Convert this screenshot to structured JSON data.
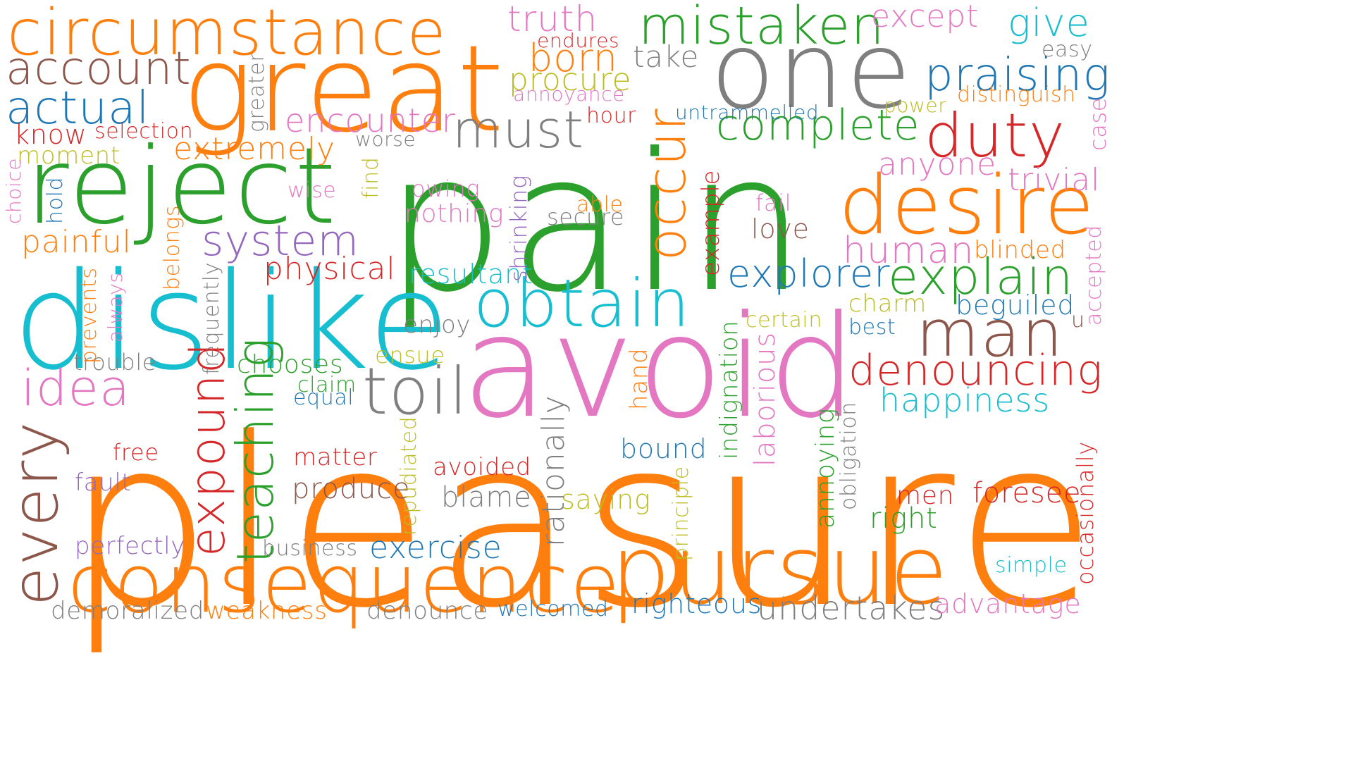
{
  "colors": {
    "orange": "#ff7f0e",
    "green": "#2ca02c",
    "cyan": "#17becf",
    "pink": "#e377c2",
    "gray": "#7f7f7f",
    "brown": "#8c564b",
    "blue": "#1f77b4",
    "red": "#d62728",
    "purple": "#9467bd",
    "olive": "#bcbd22"
  },
  "words": [
    {
      "text": "pleasure",
      "color": "orange"
    },
    {
      "text": "pain",
      "color": "green"
    },
    {
      "text": "avoid",
      "color": "pink"
    },
    {
      "text": "dislike",
      "color": "cyan"
    },
    {
      "text": "great",
      "color": "orange"
    },
    {
      "text": "one",
      "color": "gray"
    },
    {
      "text": "reject",
      "color": "green"
    },
    {
      "text": "pursue",
      "color": "orange"
    },
    {
      "text": "consequence",
      "color": "orange"
    },
    {
      "text": "desire",
      "color": "orange"
    },
    {
      "text": "circumstance",
      "color": "orange"
    },
    {
      "text": "obtain",
      "color": "cyan"
    },
    {
      "text": "man",
      "color": "brown"
    },
    {
      "text": "mistaken",
      "color": "green"
    },
    {
      "text": "toil",
      "color": "gray"
    },
    {
      "text": "praising",
      "color": "blue"
    },
    {
      "text": "duty",
      "color": "red"
    },
    {
      "text": "must",
      "color": "gray"
    },
    {
      "text": "complete",
      "color": "green"
    },
    {
      "text": "denouncing",
      "color": "red"
    },
    {
      "text": "explain",
      "color": "green"
    },
    {
      "text": "idea",
      "color": "pink"
    },
    {
      "text": "account",
      "color": "brown"
    },
    {
      "text": "actual",
      "color": "blue"
    },
    {
      "text": "system",
      "color": "purple"
    },
    {
      "text": "explorer",
      "color": "blue"
    },
    {
      "text": "human",
      "color": "pink"
    },
    {
      "text": "every",
      "color": "brown"
    },
    {
      "text": "occur",
      "color": "orange"
    },
    {
      "text": "teaching",
      "color": "green"
    },
    {
      "text": "expound",
      "color": "red"
    },
    {
      "text": "happiness",
      "color": "cyan"
    },
    {
      "text": "undertakes",
      "color": "gray"
    },
    {
      "text": "encounter",
      "color": "pink"
    },
    {
      "text": "give",
      "color": "cyan"
    },
    {
      "text": "painful",
      "color": "orange"
    },
    {
      "text": "physical",
      "color": "red"
    },
    {
      "text": "exercise",
      "color": "blue"
    },
    {
      "text": "advantage",
      "color": "pink"
    },
    {
      "text": "extremely",
      "color": "orange"
    },
    {
      "text": "truth",
      "color": "pink"
    },
    {
      "text": "born",
      "color": "orange"
    },
    {
      "text": "procure",
      "color": "olive"
    },
    {
      "text": "except",
      "color": "pink"
    },
    {
      "text": "anyone",
      "color": "pink"
    },
    {
      "text": "trivial",
      "color": "pink"
    },
    {
      "text": "righteous",
      "color": "blue"
    },
    {
      "text": "demoralized",
      "color": "gray"
    },
    {
      "text": "weakness",
      "color": "orange"
    },
    {
      "text": "denounce",
      "color": "gray"
    },
    {
      "text": "resultant",
      "color": "cyan"
    },
    {
      "text": "foresee",
      "color": "red"
    },
    {
      "text": "chooses",
      "color": "green"
    },
    {
      "text": "produce",
      "color": "brown"
    },
    {
      "text": "blame",
      "color": "gray"
    },
    {
      "text": "take",
      "color": "gray"
    },
    {
      "text": "enjoy",
      "color": "gray"
    },
    {
      "text": "trouble",
      "color": "gray"
    },
    {
      "text": "matter",
      "color": "red"
    },
    {
      "text": "avoided",
      "color": "red"
    },
    {
      "text": "bound",
      "color": "blue"
    },
    {
      "text": "love",
      "color": "brown"
    },
    {
      "text": "secure",
      "color": "gray"
    },
    {
      "text": "nothing",
      "color": "pink"
    },
    {
      "text": "owing",
      "color": "pink"
    },
    {
      "text": "know",
      "color": "red"
    },
    {
      "text": "saying",
      "color": "olive"
    },
    {
      "text": "beguiled",
      "color": "blue"
    },
    {
      "text": "charm",
      "color": "olive"
    },
    {
      "text": "blinded",
      "color": "orange"
    },
    {
      "text": "men",
      "color": "red"
    },
    {
      "text": "right",
      "color": "green"
    },
    {
      "text": "fault",
      "color": "purple"
    },
    {
      "text": "free",
      "color": "red"
    },
    {
      "text": "perfectly",
      "color": "purple"
    },
    {
      "text": "business",
      "color": "gray"
    },
    {
      "text": "welcomed",
      "color": "blue"
    },
    {
      "text": "simple",
      "color": "cyan"
    },
    {
      "text": "easy",
      "color": "gray"
    },
    {
      "text": "distinguish",
      "color": "orange"
    },
    {
      "text": "power",
      "color": "olive"
    },
    {
      "text": "untrammelled",
      "color": "blue"
    },
    {
      "text": "hour",
      "color": "red"
    },
    {
      "text": "annoyance",
      "color": "pink"
    },
    {
      "text": "endures",
      "color": "red"
    },
    {
      "text": "moment",
      "color": "olive"
    },
    {
      "text": "selection",
      "color": "red"
    },
    {
      "text": "worse",
      "color": "gray"
    },
    {
      "text": "wise",
      "color": "pink"
    },
    {
      "text": "able",
      "color": "orange"
    },
    {
      "text": "fail",
      "color": "pink"
    },
    {
      "text": "certain",
      "color": "olive"
    },
    {
      "text": "best",
      "color": "blue"
    },
    {
      "text": "ensue",
      "color": "olive"
    },
    {
      "text": "claim",
      "color": "green"
    },
    {
      "text": "equal",
      "color": "blue"
    },
    {
      "text": "u",
      "color": "brown"
    },
    {
      "text": "greater",
      "color": "gray"
    },
    {
      "text": "find",
      "color": "olive"
    },
    {
      "text": "shrinking",
      "color": "purple"
    },
    {
      "text": "example",
      "color": "red"
    },
    {
      "text": "hold",
      "color": "blue"
    },
    {
      "text": "choice",
      "color": "pink"
    },
    {
      "text": "belongs",
      "color": "orange"
    },
    {
      "text": "frequently",
      "color": "gray"
    },
    {
      "text": "prevents",
      "color": "orange"
    },
    {
      "text": "always",
      "color": "pink"
    },
    {
      "text": "hand",
      "color": "orange"
    },
    {
      "text": "indignation",
      "color": "green"
    },
    {
      "text": "laborious",
      "color": "pink"
    },
    {
      "text": "annoying",
      "color": "green"
    },
    {
      "text": "obligation",
      "color": "gray"
    },
    {
      "text": "principle",
      "color": "olive"
    },
    {
      "text": "repudiated",
      "color": "olive"
    },
    {
      "text": "rationally",
      "color": "gray"
    },
    {
      "text": "occasionally",
      "color": "red"
    },
    {
      "text": "case",
      "color": "pink"
    },
    {
      "text": "accepted",
      "color": "pink"
    }
  ]
}
